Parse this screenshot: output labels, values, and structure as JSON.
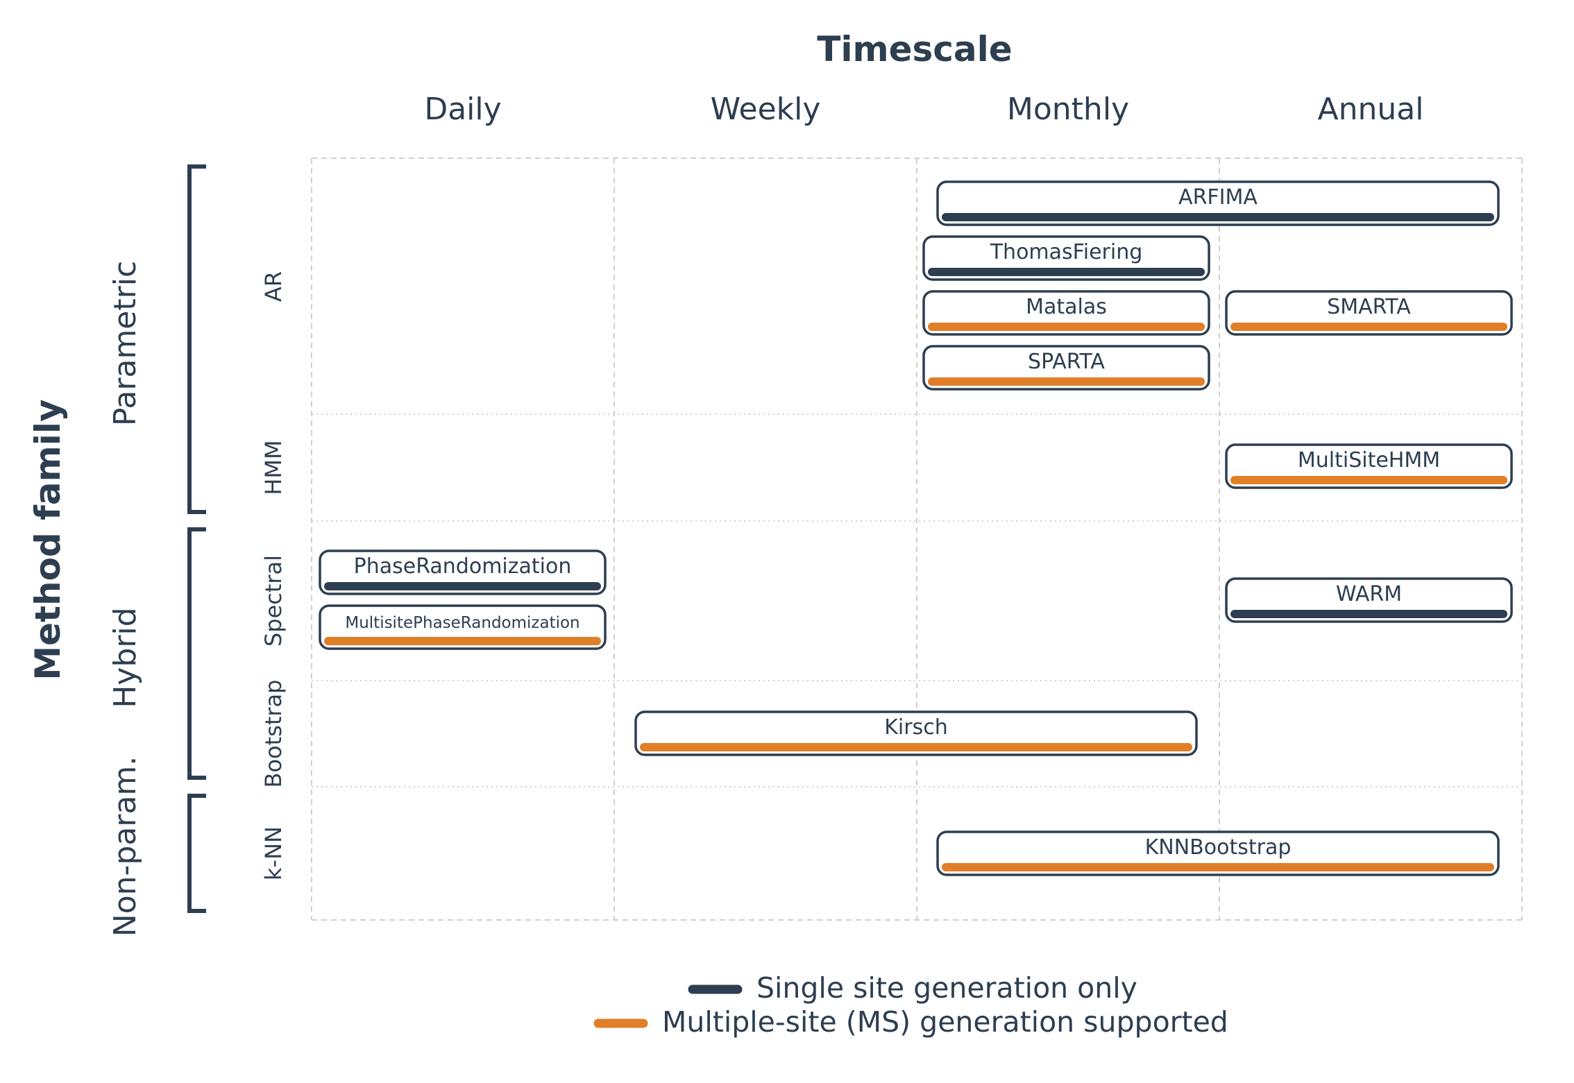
{
  "title": "Timescale",
  "y_title": "Method family",
  "colors": {
    "ink": "#2d3e50",
    "single_site": "#2d3e50",
    "multi_site": "#e07f27",
    "grid": "#d0d0d0"
  },
  "columns": [
    "Daily",
    "Weekly",
    "Monthly",
    "Annual"
  ],
  "families": [
    {
      "label": "Parametric",
      "subgroups": [
        "AR",
        "HMM"
      ]
    },
    {
      "label": "Hybrid",
      "subgroups": [
        "Spectral",
        "Bootstrap"
      ]
    },
    {
      "label": "Non-param.",
      "subgroups": [
        "k-NN"
      ]
    }
  ],
  "rows": [
    "AR",
    "HMM",
    "Spectral",
    "Bootstrap",
    "k-NN"
  ],
  "methods": [
    {
      "name": "ARFIMA",
      "row": "AR",
      "from": "Monthly",
      "to": "Annual",
      "ms": false
    },
    {
      "name": "ThomasFiering",
      "row": "AR",
      "from": "Monthly",
      "to": "Monthly",
      "ms": false
    },
    {
      "name": "Matalas",
      "row": "AR",
      "from": "Monthly",
      "to": "Monthly",
      "ms": true
    },
    {
      "name": "SMARTA",
      "row": "AR",
      "from": "Annual",
      "to": "Annual",
      "ms": true
    },
    {
      "name": "SPARTA",
      "row": "AR",
      "from": "Monthly",
      "to": "Monthly",
      "ms": true
    },
    {
      "name": "MultiSiteHMM",
      "row": "HMM",
      "from": "Annual",
      "to": "Annual",
      "ms": true
    },
    {
      "name": "PhaseRandomization",
      "row": "Spectral",
      "from": "Daily",
      "to": "Daily",
      "ms": false
    },
    {
      "name": "MultisitePhaseRandomization",
      "row": "Spectral",
      "from": "Daily",
      "to": "Daily",
      "ms": true
    },
    {
      "name": "WARM",
      "row": "Spectral",
      "from": "Annual",
      "to": "Annual",
      "ms": false
    },
    {
      "name": "Kirsch",
      "row": "Bootstrap",
      "from": "Weekly",
      "to": "Monthly",
      "ms": true
    },
    {
      "name": "KNNBootstrap",
      "row": "k-NN",
      "from": "Monthly",
      "to": "Annual",
      "ms": true
    }
  ],
  "legend": [
    {
      "label": "Single site generation only",
      "color": "#2d3e50"
    },
    {
      "label": "Multiple-site (MS) generation supported",
      "color": "#e07f27"
    }
  ]
}
